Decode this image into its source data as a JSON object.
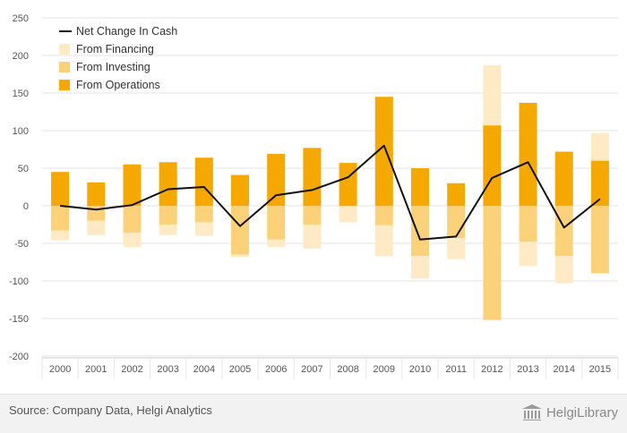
{
  "colors": {
    "operations": "#f5a800",
    "investing": "#fbd27a",
    "financing": "#feeac4",
    "net": "#111111",
    "grid": "#e6e6e6",
    "axis": "#cccccc"
  },
  "chart_data": {
    "type": "bar",
    "stacked": true,
    "categories": [
      "2000",
      "2001",
      "2002",
      "2003",
      "2004",
      "2005",
      "2006",
      "2007",
      "2008",
      "2009",
      "2010",
      "2011",
      "2012",
      "2013",
      "2014",
      "2015"
    ],
    "series": [
      {
        "name": "From Operations",
        "type": "bar",
        "values": [
          45,
          31,
          55,
          58,
          64,
          41,
          69,
          77,
          57,
          145,
          50,
          30,
          107,
          137,
          72,
          60
        ]
      },
      {
        "name": "From Investing",
        "type": "bar",
        "values": [
          -33,
          -20,
          -36,
          -25,
          -22,
          -65,
          -45,
          -25,
          -1,
          -26,
          -67,
          -43,
          -152,
          -48,
          -67,
          -90
        ]
      },
      {
        "name": "From Financing",
        "type": "bar",
        "values": [
          -13,
          -19,
          -19,
          -14,
          -18,
          -3,
          -10,
          -32,
          -21,
          -41,
          -30,
          -28,
          80,
          -32,
          -36,
          37
        ]
      },
      {
        "name": "Net Change In Cash",
        "type": "line",
        "values": [
          0,
          -5,
          1,
          22,
          25,
          -27,
          14,
          21,
          38,
          80,
          -45,
          -41,
          37,
          58,
          -29,
          9
        ]
      }
    ],
    "yticks": [
      250,
      200,
      150,
      100,
      50,
      0,
      -50,
      -100,
      -150,
      -200
    ],
    "ylim": [
      -200,
      250
    ],
    "grid": true,
    "legend_position": "top-left",
    "legend": [
      "Net Change In Cash",
      "From Financing",
      "From Investing",
      "From Operations"
    ]
  },
  "footer": {
    "source": "Source: Company Data, Helgi Analytics",
    "brand": "HelgiLibrary"
  }
}
